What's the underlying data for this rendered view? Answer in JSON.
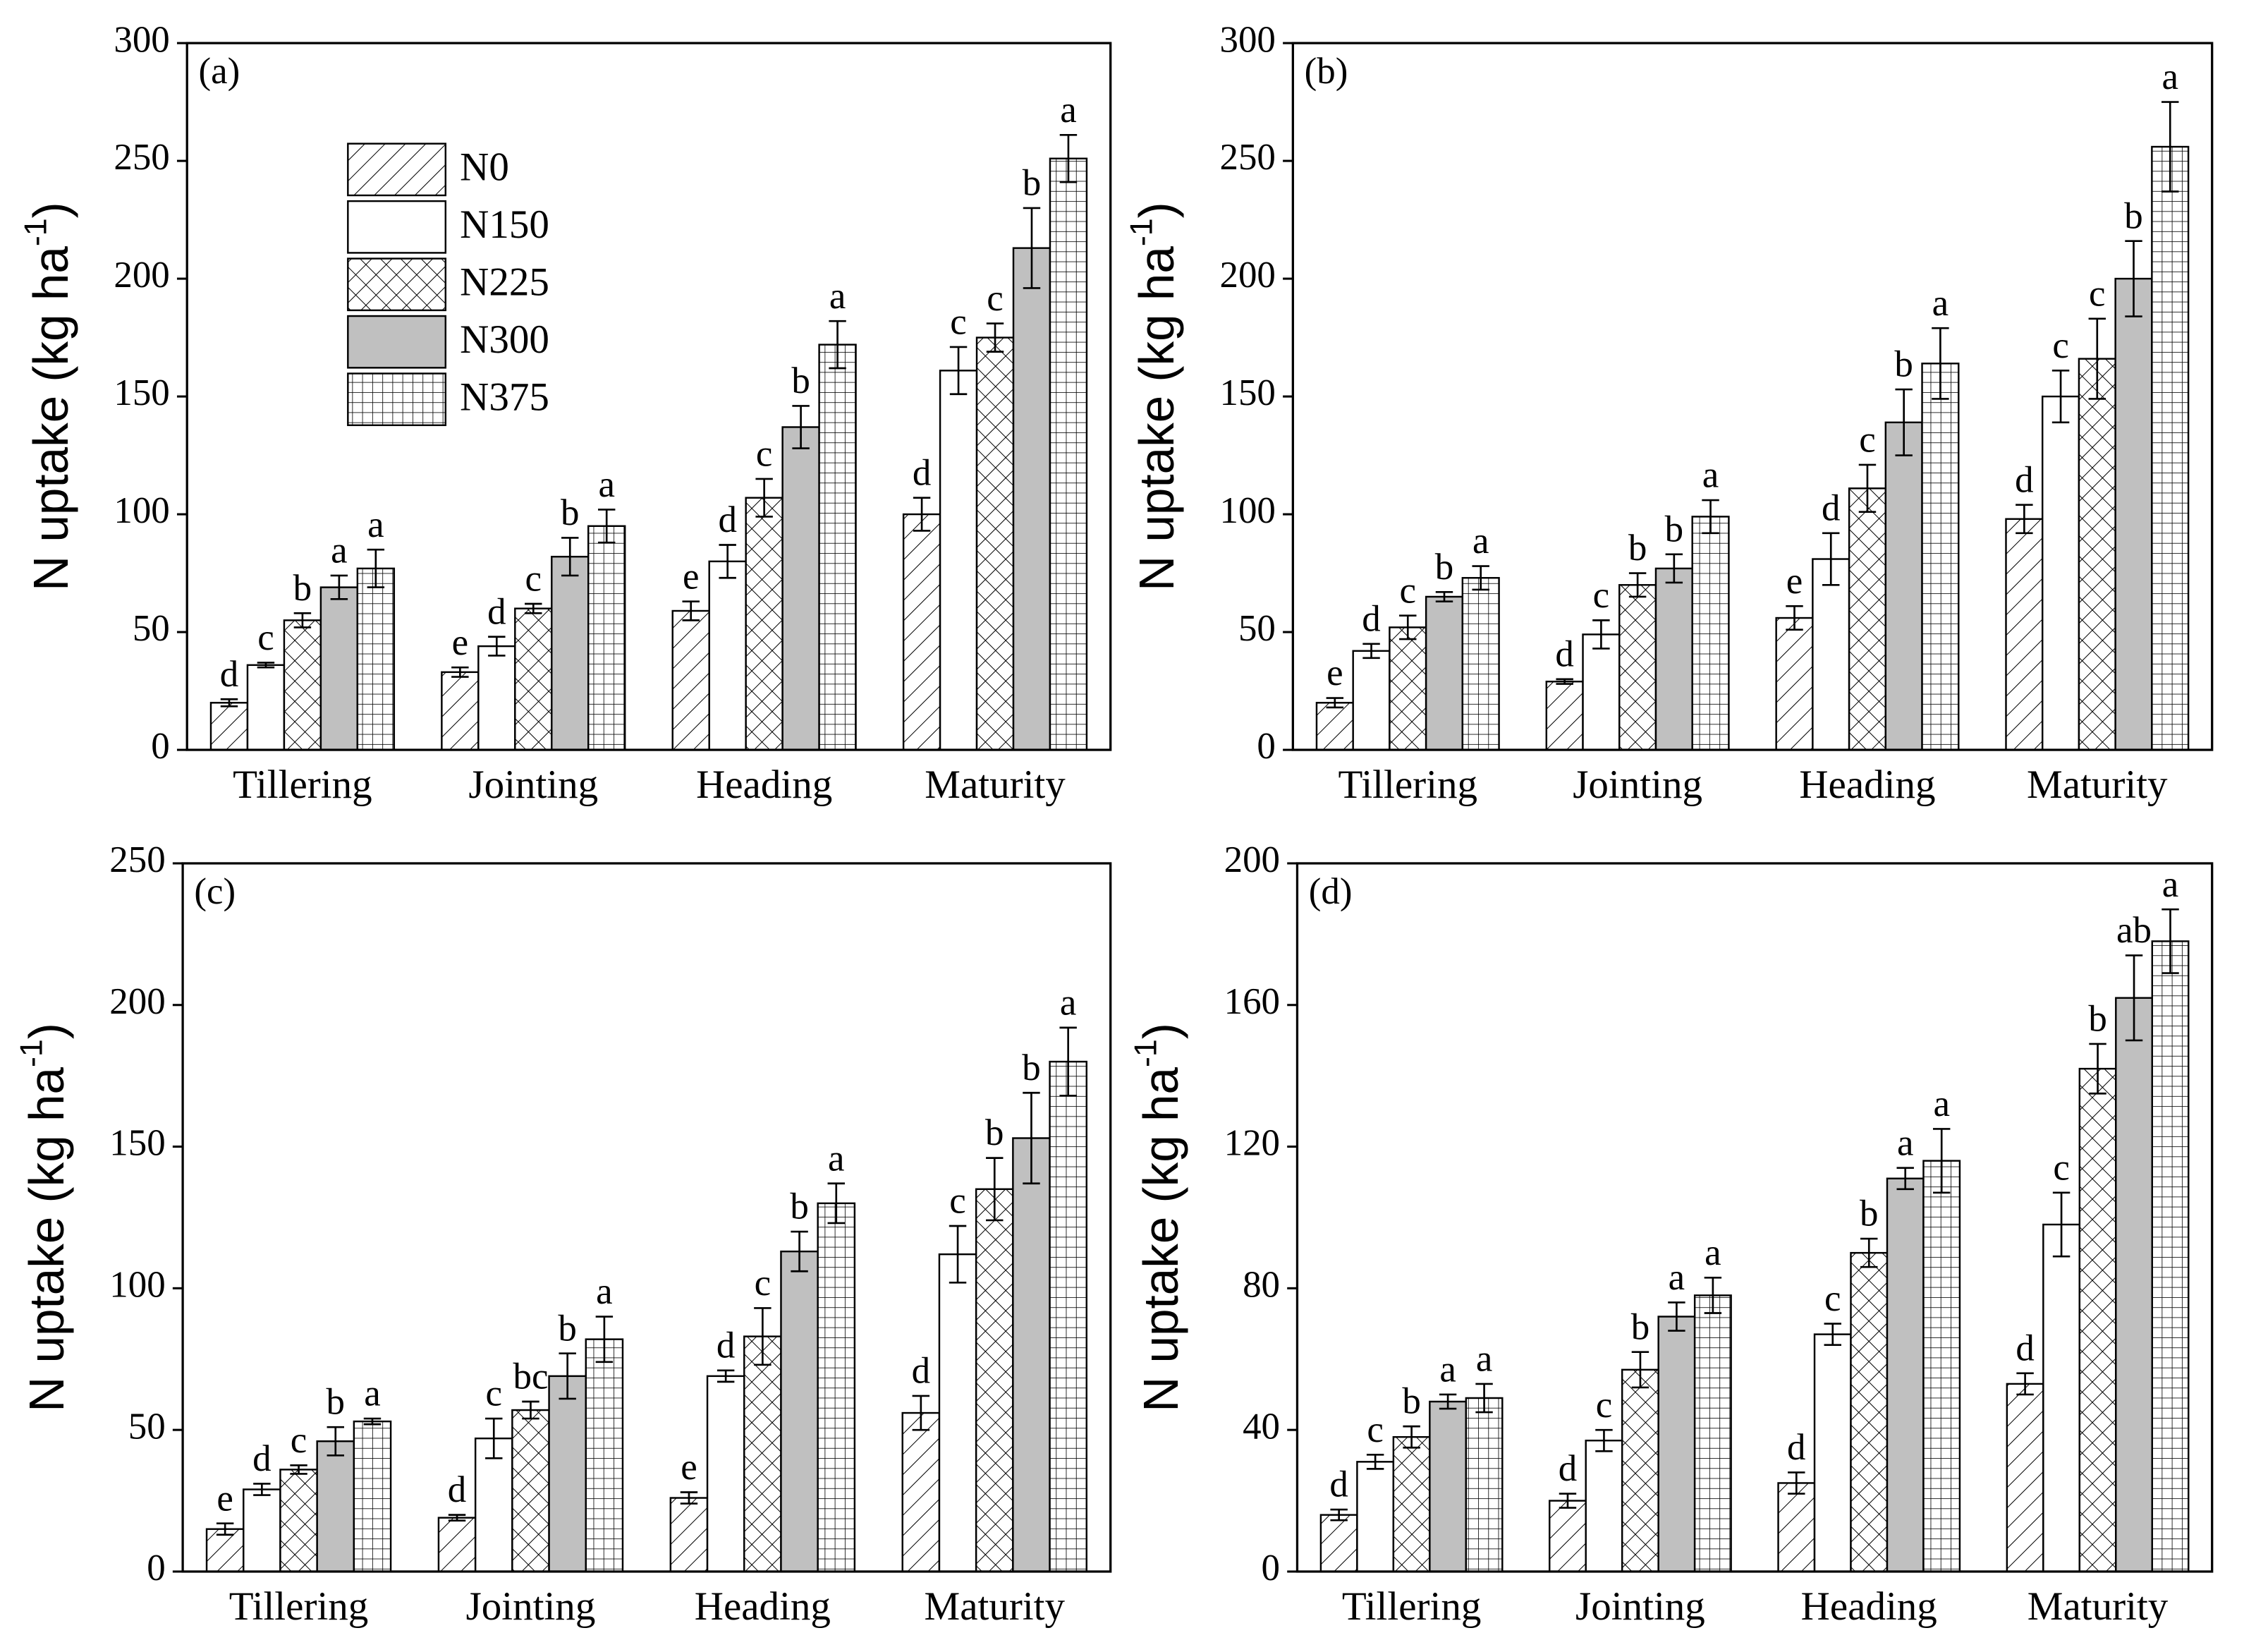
{
  "chart_data": [
    {
      "type": "bar",
      "panel_label": "(a)",
      "ylabel": "N uptake (kg ha",
      "ylabel_sup": "-1",
      "ylabel_end": ")",
      "categories": [
        "Tillering",
        "Jointing",
        "Heading",
        "Maturity"
      ],
      "ylim": [
        0,
        300
      ],
      "yticks": [
        0,
        50,
        100,
        150,
        200,
        250,
        300
      ],
      "legend": "upper left",
      "series": [
        {
          "name": "N0",
          "pattern": "diagonal",
          "values": [
            20,
            33,
            59,
            100
          ],
          "errors": [
            1.5,
            2,
            4,
            7
          ],
          "letters": [
            "d",
            "e",
            "e",
            "d"
          ]
        },
        {
          "name": "N150",
          "pattern": "plain",
          "values": [
            36,
            44,
            80,
            161
          ],
          "errors": [
            1,
            4,
            7,
            10
          ],
          "letters": [
            "c",
            "d",
            "d",
            "c"
          ]
        },
        {
          "name": "N225",
          "pattern": "crosshatch",
          "values": [
            55,
            60,
            107,
            175
          ],
          "errors": [
            3,
            2,
            8,
            6
          ],
          "letters": [
            "b",
            "c",
            "c",
            "c"
          ]
        },
        {
          "name": "N300",
          "pattern": "gray",
          "values": [
            69,
            82,
            137,
            213
          ],
          "errors": [
            5,
            8,
            9,
            17
          ],
          "letters": [
            "a",
            "b",
            "b",
            "b"
          ]
        },
        {
          "name": "N375",
          "pattern": "grid",
          "values": [
            77,
            95,
            172,
            251
          ],
          "errors": [
            8,
            7,
            10,
            10
          ],
          "letters": [
            "a",
            "a",
            "a",
            "a"
          ]
        }
      ]
    },
    {
      "type": "bar",
      "panel_label": "(b)",
      "ylabel": "N uptake (kg ha",
      "ylabel_sup": "-1",
      "ylabel_end": ")",
      "categories": [
        "Tillering",
        "Jointing",
        "Heading",
        "Maturity"
      ],
      "ylim": [
        0,
        300
      ],
      "yticks": [
        0,
        50,
        100,
        150,
        200,
        250,
        300
      ],
      "series": [
        {
          "pattern": "diagonal",
          "values": [
            20,
            29,
            56,
            98
          ],
          "errors": [
            2,
            1,
            5,
            6
          ],
          "letters": [
            "e",
            "d",
            "e",
            "d"
          ]
        },
        {
          "pattern": "plain",
          "values": [
            42,
            49,
            81,
            150
          ],
          "errors": [
            3,
            6,
            11,
            11
          ],
          "letters": [
            "d",
            "c",
            "d",
            "c"
          ]
        },
        {
          "pattern": "crosshatch",
          "values": [
            52,
            70,
            111,
            166
          ],
          "errors": [
            5,
            5,
            10,
            17
          ],
          "letters": [
            "c",
            "b",
            "c",
            "c"
          ]
        },
        {
          "pattern": "gray",
          "values": [
            65,
            77,
            139,
            200
          ],
          "errors": [
            2,
            6,
            14,
            16
          ],
          "letters": [
            "b",
            "b",
            "b",
            "b"
          ]
        },
        {
          "pattern": "grid",
          "values": [
            73,
            99,
            164,
            256
          ],
          "errors": [
            5,
            7,
            15,
            19
          ],
          "letters": [
            "a",
            "a",
            "a",
            "a"
          ]
        }
      ]
    },
    {
      "type": "bar",
      "panel_label": "(c)",
      "ylabel": "N uptake (kg ha",
      "ylabel_sup": "-1",
      "ylabel_end": ")",
      "categories": [
        "Tillering",
        "Jointing",
        "Heading",
        "Maturity"
      ],
      "ylim": [
        0,
        250
      ],
      "yticks": [
        0,
        50,
        100,
        150,
        200,
        250
      ],
      "series": [
        {
          "pattern": "diagonal",
          "values": [
            15,
            19,
            26,
            56
          ],
          "errors": [
            2,
            1,
            2,
            6
          ],
          "letters": [
            "e",
            "d",
            "e",
            "d"
          ]
        },
        {
          "pattern": "plain",
          "values": [
            29,
            47,
            69,
            112
          ],
          "errors": [
            2,
            7,
            2,
            10
          ],
          "letters": [
            "d",
            "c",
            "d",
            "c"
          ]
        },
        {
          "pattern": "crosshatch",
          "values": [
            36,
            57,
            83,
            135
          ],
          "errors": [
            1.5,
            3,
            10,
            11
          ],
          "letters": [
            "c",
            "bc",
            "c",
            "b"
          ]
        },
        {
          "pattern": "gray",
          "values": [
            46,
            69,
            113,
            153
          ],
          "errors": [
            5,
            8,
            7,
            16
          ],
          "letters": [
            "b",
            "b",
            "b",
            "b"
          ]
        },
        {
          "pattern": "grid",
          "values": [
            53,
            82,
            130,
            180
          ],
          "errors": [
            1,
            8,
            7,
            12
          ],
          "letters": [
            "a",
            "a",
            "a",
            "a"
          ]
        }
      ]
    },
    {
      "type": "bar",
      "panel_label": "(d)",
      "ylabel": "N uptake (kg ha",
      "ylabel_sup": "-1",
      "ylabel_end": ")",
      "categories": [
        "Tillering",
        "Jointing",
        "Heading",
        "Maturity"
      ],
      "ylim": [
        0,
        200
      ],
      "yticks": [
        0,
        40,
        80,
        120,
        160,
        200
      ],
      "series": [
        {
          "pattern": "diagonal",
          "values": [
            16,
            20,
            25,
            53
          ],
          "errors": [
            1.5,
            2,
            3,
            3
          ],
          "letters": [
            "d",
            "d",
            "d",
            "d"
          ]
        },
        {
          "pattern": "plain",
          "values": [
            31,
            37,
            67,
            98
          ],
          "errors": [
            2,
            3,
            3,
            9
          ],
          "letters": [
            "c",
            "c",
            "c",
            "c"
          ]
        },
        {
          "pattern": "crosshatch",
          "values": [
            38,
            57,
            90,
            142
          ],
          "errors": [
            3,
            5,
            4,
            7
          ],
          "letters": [
            "b",
            "b",
            "b",
            "b"
          ]
        },
        {
          "pattern": "gray",
          "values": [
            48,
            72,
            111,
            162
          ],
          "errors": [
            2,
            4,
            3,
            12
          ],
          "letters": [
            "a",
            "a",
            "a",
            "ab"
          ]
        },
        {
          "pattern": "grid",
          "values": [
            49,
            78,
            116,
            178
          ],
          "errors": [
            4,
            5,
            9,
            9
          ],
          "letters": [
            "a",
            "a",
            "a",
            "a"
          ]
        }
      ]
    }
  ]
}
